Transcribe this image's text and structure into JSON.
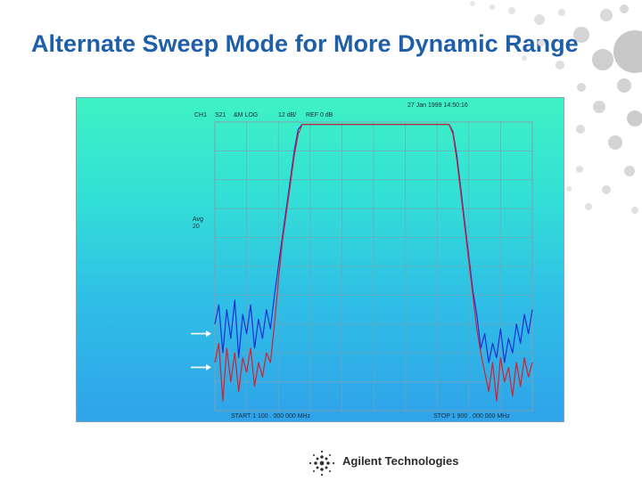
{
  "slide": {
    "title": "Alternate Sweep Mode for More Dynamic Range"
  },
  "analyzer": {
    "timestamp": "27 Jan 1999  14:50:16",
    "channel": "CH1",
    "parameter": "S21",
    "format": "&M LOG",
    "scale": "12 dB/",
    "reference": "REF 0 dB",
    "avg_label": "Avg",
    "avg_count": "20",
    "start": "START 1 100 . 000 000  MHz",
    "stop": "STOP 1 900 . 000 000  MHz",
    "colors": {
      "trace_blue": "#1f2fd6",
      "trace_red": "#d8202a",
      "grid": "#7f9fb0"
    }
  },
  "chart_data": {
    "type": "line",
    "title": "",
    "xlabel": "",
    "ylabel": "",
    "xlim": [
      1100,
      1900
    ],
    "ylim": [
      -120,
      0
    ],
    "grid": true,
    "x": [
      1100,
      1110,
      1120,
      1130,
      1140,
      1150,
      1160,
      1170,
      1180,
      1190,
      1200,
      1210,
      1220,
      1230,
      1240,
      1250,
      1260,
      1270,
      1280,
      1290,
      1300,
      1310,
      1320,
      1330,
      1340,
      1350,
      1360,
      1370,
      1380,
      1390,
      1400,
      1410,
      1420,
      1430,
      1440,
      1450,
      1460,
      1470,
      1480,
      1490,
      1500,
      1510,
      1520,
      1530,
      1540,
      1550,
      1560,
      1570,
      1580,
      1590,
      1600,
      1610,
      1620,
      1630,
      1640,
      1650,
      1660,
      1670,
      1680,
      1690,
      1700,
      1710,
      1720,
      1730,
      1740,
      1750,
      1760,
      1770,
      1780,
      1790,
      1800,
      1810,
      1820,
      1830,
      1840,
      1850,
      1860,
      1870,
      1880,
      1890,
      1900
    ],
    "series": [
      {
        "name": "",
        "color": "#1f2fd6",
        "values": [
          -84,
          -76,
          -96,
          -78,
          -90,
          -74,
          -98,
          -80,
          -88,
          -76,
          -94,
          -82,
          -90,
          -78,
          -86,
          -72,
          -60,
          -48,
          -36,
          -24,
          -12,
          -3,
          -1,
          -1,
          -1,
          -1,
          -1,
          -1,
          -1,
          -1,
          -1,
          -1,
          -1,
          -1,
          -1,
          -1,
          -1,
          -1,
          -1,
          -1,
          -1,
          -1,
          -1,
          -1,
          -1,
          -1,
          -1,
          -1,
          -1,
          -1,
          -1,
          -1,
          -1,
          -1,
          -1,
          -1,
          -1,
          -1,
          -1,
          -1,
          -4,
          -14,
          -28,
          -42,
          -56,
          -70,
          -80,
          -94,
          -88,
          -100,
          -92,
          -98,
          -86,
          -100,
          -90,
          -96,
          -84,
          -92,
          -80,
          -88,
          -78
        ]
      },
      {
        "name": "",
        "color": "#d8202a",
        "values": [
          -100,
          -92,
          -116,
          -94,
          -108,
          -96,
          -112,
          -98,
          -104,
          -94,
          -110,
          -100,
          -106,
          -96,
          -100,
          -84,
          -66,
          -50,
          -38,
          -26,
          -14,
          -5,
          -1,
          -1,
          -1,
          -1,
          -1,
          -1,
          -1,
          -1,
          -1,
          -1,
          -1,
          -1,
          -1,
          -1,
          -1,
          -1,
          -1,
          -1,
          -1,
          -1,
          -1,
          -1,
          -1,
          -1,
          -1,
          -1,
          -1,
          -1,
          -1,
          -1,
          -1,
          -1,
          -1,
          -1,
          -1,
          -1,
          -1,
          -1,
          -5,
          -16,
          -30,
          -44,
          -58,
          -72,
          -86,
          -96,
          -104,
          -112,
          -100,
          -116,
          -98,
          -108,
          -102,
          -114,
          -100,
          -110,
          -98,
          -106,
          -100
        ]
      }
    ]
  }
}
